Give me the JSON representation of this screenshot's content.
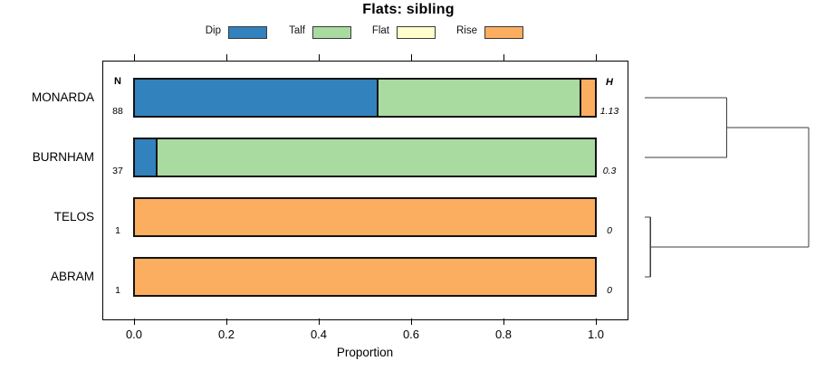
{
  "title": "Flats: sibling",
  "chart_data": {
    "type": "bar",
    "orientation": "horizontal",
    "stacked": true,
    "title": "Flats: sibling",
    "xlabel": "Proportion",
    "xlim": [
      0,
      1
    ],
    "grid": false,
    "legend_position": "top",
    "xticks": [
      {
        "value": 0.0,
        "label": "0.0"
      },
      {
        "value": 0.2,
        "label": "0.2"
      },
      {
        "value": 0.4,
        "label": "0.4"
      },
      {
        "value": 0.6,
        "label": "0.6"
      },
      {
        "value": 0.8,
        "label": "0.8"
      },
      {
        "value": 1.0,
        "label": "1.0"
      }
    ],
    "categories": [
      "MONARDA",
      "BURNHAM",
      "TELOS",
      "ABRAM"
    ],
    "series": [
      {
        "name": "Dip",
        "color": "#3182bd",
        "values": [
          0.53,
          0.05,
          0,
          0
        ]
      },
      {
        "name": "Talf",
        "color": "#a9daa0",
        "values": [
          0.44,
          0.95,
          0,
          0
        ]
      },
      {
        "name": "Flat",
        "color": "#ffffcc",
        "values": [
          0,
          0,
          0,
          0
        ]
      },
      {
        "name": "Rise",
        "color": "#fbad60",
        "values": [
          0.03,
          0,
          1,
          1
        ]
      }
    ],
    "n_column": {
      "header": "N",
      "values": [
        "88",
        "37",
        "1",
        "1"
      ]
    },
    "h_column": {
      "header": "H",
      "values": [
        "1.13",
        "0.3",
        "0",
        "0"
      ]
    }
  },
  "dendrogram": {
    "leaves": [
      "MONARDA",
      "BURNHAM",
      "TELOS",
      "ABRAM"
    ],
    "tree": {
      "height": 1.0,
      "children": [
        {
          "height": 0.5,
          "children": [
            {
              "leaf": "MONARDA"
            },
            {
              "leaf": "BURNHAM"
            }
          ]
        },
        {
          "height": 0.035,
          "children": [
            {
              "leaf": "TELOS"
            },
            {
              "leaf": "ABRAM"
            }
          ]
        }
      ]
    }
  },
  "colors": {
    "bar_border": "#141414",
    "axis": "#000000",
    "dendrogram_line": "#3d3d3d",
    "background": "#ffffff"
  }
}
